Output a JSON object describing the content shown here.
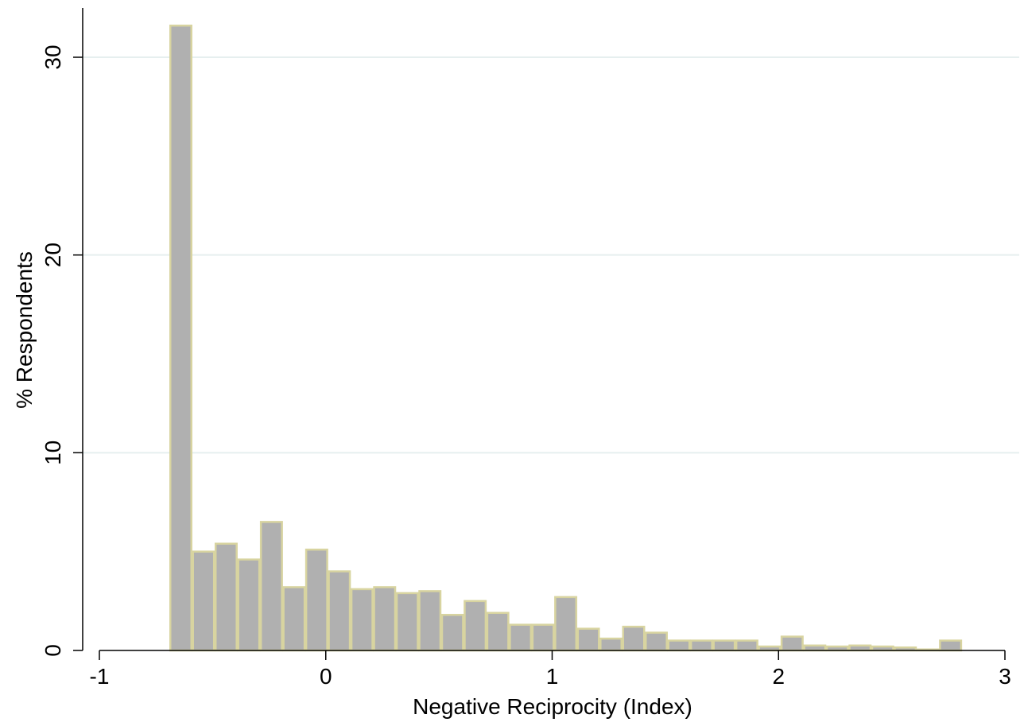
{
  "chart_data": {
    "type": "bar",
    "title": "",
    "xlabel": "Negative Reciprocity (Index)",
    "ylabel": "% Respondents",
    "xlim": [
      -1.05,
      3.05
    ],
    "ylim": [
      0,
      32.5
    ],
    "xticks": [
      -1,
      0,
      1,
      2,
      3
    ],
    "xtick_labels": [
      "-1",
      "0",
      "1",
      "2",
      "3"
    ],
    "yticks": [
      0,
      10,
      20,
      30
    ],
    "ytick_labels": [
      "0",
      "10",
      "20",
      "30"
    ],
    "grid": "horizontal",
    "legend": "none",
    "bin_edges": [
      -0.69,
      -0.59,
      -0.49,
      -0.39,
      -0.29,
      -0.19,
      -0.09,
      0.01,
      0.11,
      0.21,
      0.31,
      0.41,
      0.51,
      0.61,
      0.71,
      0.81,
      0.91,
      1.01,
      1.11,
      1.21,
      1.31,
      1.41,
      1.51,
      1.61,
      1.71,
      1.81,
      1.91,
      2.01,
      2.11,
      2.21,
      2.31,
      2.41,
      2.51,
      2.61,
      2.71,
      2.81
    ],
    "values": [
      31.6,
      5.0,
      5.4,
      4.6,
      6.5,
      3.2,
      5.1,
      4.0,
      3.1,
      3.2,
      2.9,
      3.0,
      1.8,
      2.5,
      1.9,
      1.3,
      1.3,
      2.7,
      1.1,
      0.6,
      1.2,
      0.9,
      0.5,
      0.5,
      0.5,
      0.5,
      0.2,
      0.7,
      0.25,
      0.2,
      0.25,
      0.2,
      0.15,
      0.05,
      0.5
    ],
    "colors": {
      "bar_fill": "#b0b0b0",
      "bar_edge": "#d8d4a0",
      "grid": "#e6efef",
      "axis": "#000000"
    }
  }
}
